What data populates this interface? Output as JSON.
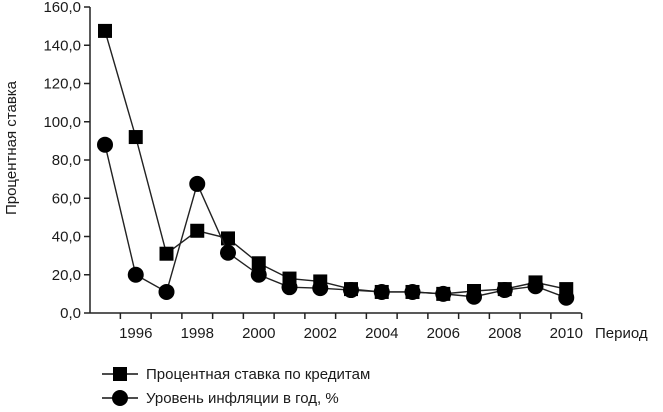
{
  "chart_data": {
    "type": "line",
    "title": "",
    "xlabel": "Период",
    "ylabel": "Процентная ставка",
    "ylim": [
      0,
      160
    ],
    "y_ticks": [
      "0,0",
      "20,0",
      "40,0",
      "60,0",
      "80,0",
      "100,0",
      "120,0",
      "140,0",
      "160,0"
    ],
    "x_tick_labels": [
      "1996",
      "1998",
      "2000",
      "2002",
      "2004",
      "2006",
      "2008",
      "2010"
    ],
    "x": [
      1995,
      1996,
      1997,
      1998,
      1999,
      2000,
      2001,
      2002,
      2003,
      2004,
      2005,
      2006,
      2007,
      2008,
      2009,
      2010
    ],
    "grid": false,
    "legend_position": "bottom-left",
    "series": [
      {
        "name": "Процентная ставка по кредитам",
        "marker": "square",
        "values": [
          147.5,
          92,
          31,
          43,
          39,
          26,
          18,
          16.5,
          12.5,
          11,
          11,
          10,
          11.5,
          12.5,
          16,
          12.5
        ]
      },
      {
        "name": "Уровень инфляции в год, %",
        "marker": "circle",
        "values": [
          88,
          20,
          11,
          67.5,
          31.5,
          20,
          13.5,
          13,
          12,
          11,
          11,
          10,
          8.5,
          12,
          14,
          8
        ]
      }
    ]
  },
  "legend": {
    "items": [
      {
        "label": "Процентная ставка по кредитам"
      },
      {
        "label": "Уровень инфляции в год, %"
      }
    ]
  }
}
